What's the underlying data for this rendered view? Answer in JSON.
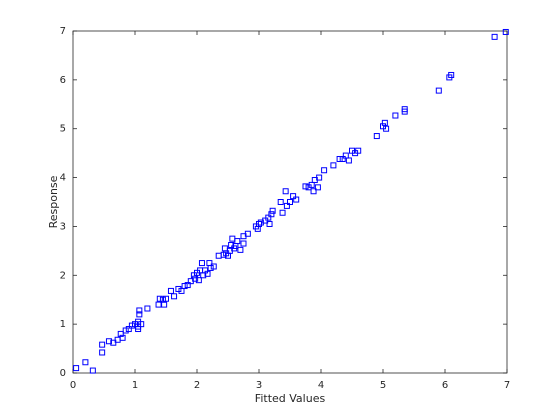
{
  "chart_data": {
    "type": "scatter",
    "x_label": "Fitted Values",
    "y_label": "Response",
    "color": "#0000ff",
    "x": [
      0.05,
      0.2,
      0.32,
      0.47,
      0.47,
      0.58,
      0.65,
      0.72,
      0.77,
      0.8,
      0.85,
      0.9,
      0.95,
      1.0,
      1.05,
      1.05,
      1.05,
      1.07,
      1.07,
      1.1,
      1.2,
      1.38,
      1.4,
      1.45,
      1.47,
      1.5,
      1.58,
      1.63,
      1.7,
      1.75,
      1.8,
      1.85,
      1.9,
      1.95,
      1.97,
      2.0,
      2.03,
      2.05,
      2.08,
      2.1,
      2.13,
      2.17,
      2.2,
      2.22,
      2.27,
      2.35,
      2.43,
      2.45,
      2.47,
      2.5,
      2.53,
      2.55,
      2.57,
      2.6,
      2.62,
      2.65,
      2.7,
      2.75,
      2.75,
      2.82,
      2.95,
      2.98,
      3.0,
      3.03,
      3.1,
      3.15,
      3.17,
      3.2,
      3.22,
      3.35,
      3.38,
      3.43,
      3.45,
      3.5,
      3.55,
      3.6,
      3.75,
      3.8,
      3.85,
      3.88,
      3.9,
      3.95,
      3.97,
      4.05,
      4.2,
      4.3,
      4.35,
      4.4,
      4.45,
      4.5,
      4.55,
      4.6,
      4.9,
      5.0,
      5.03,
      5.05,
      5.2,
      5.35,
      5.35,
      5.9,
      6.07,
      6.1,
      6.8,
      6.98
    ],
    "y": [
      0.1,
      0.22,
      0.05,
      0.42,
      0.58,
      0.65,
      0.62,
      0.68,
      0.8,
      0.72,
      0.87,
      0.9,
      0.97,
      1.0,
      0.9,
      0.95,
      1.05,
      1.2,
      1.28,
      1.0,
      1.32,
      1.4,
      1.52,
      1.5,
      1.4,
      1.52,
      1.68,
      1.57,
      1.72,
      1.68,
      1.78,
      1.8,
      1.88,
      2.0,
      1.93,
      2.05,
      1.9,
      2.1,
      2.25,
      2.0,
      2.1,
      2.03,
      2.25,
      2.15,
      2.18,
      2.4,
      2.42,
      2.55,
      2.45,
      2.4,
      2.5,
      2.62,
      2.75,
      2.55,
      2.6,
      2.7,
      2.52,
      2.8,
      2.65,
      2.85,
      3.0,
      2.95,
      3.05,
      3.08,
      3.12,
      3.18,
      3.05,
      3.25,
      3.32,
      3.5,
      3.28,
      3.72,
      3.42,
      3.5,
      3.62,
      3.55,
      3.82,
      3.8,
      3.85,
      3.72,
      3.95,
      3.8,
      4.0,
      4.15,
      4.25,
      4.38,
      4.38,
      4.45,
      4.35,
      4.55,
      4.5,
      4.55,
      4.85,
      5.05,
      5.12,
      5.0,
      5.27,
      5.35,
      5.4,
      5.78,
      6.05,
      6.1,
      6.88,
      6.98
    ],
    "xlim": [
      0,
      7
    ],
    "xticks": [
      0,
      1,
      2,
      3,
      4,
      5,
      6,
      7
    ],
    "ylim": [
      0,
      7
    ],
    "yticks": [
      0,
      1,
      2,
      3,
      4,
      5,
      6,
      7
    ]
  }
}
